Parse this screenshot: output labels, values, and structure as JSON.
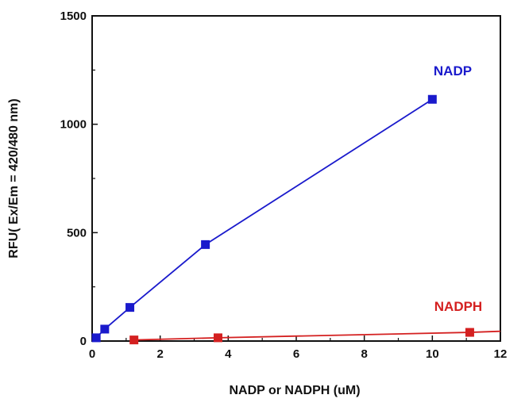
{
  "chart_data": {
    "type": "line",
    "title": "",
    "xlabel": "NADP or NADPH (uM)",
    "ylabel": "RFU( Ex/Em = 420/480 nm)",
    "xlim": [
      0,
      12
    ],
    "ylim": [
      0,
      1500
    ],
    "xticks": [
      "0",
      "2",
      "4",
      "6",
      "8",
      "10",
      "12"
    ],
    "yticks": [
      "0",
      "500",
      "1000",
      "1500"
    ],
    "grid": false,
    "series": [
      {
        "name": "NADP",
        "color": "#1a1acc",
        "marker": "square",
        "x": [
          0.12,
          0.37,
          1.11,
          3.33,
          10
        ],
        "y": [
          15,
          55,
          155,
          445,
          1115
        ]
      },
      {
        "name": "NADPH",
        "color": "#d42020",
        "marker": "square",
        "x": [
          1.23,
          3.7,
          11.1
        ],
        "y": [
          5,
          15,
          40
        ],
        "line_end": [
          12,
          45
        ]
      }
    ]
  }
}
